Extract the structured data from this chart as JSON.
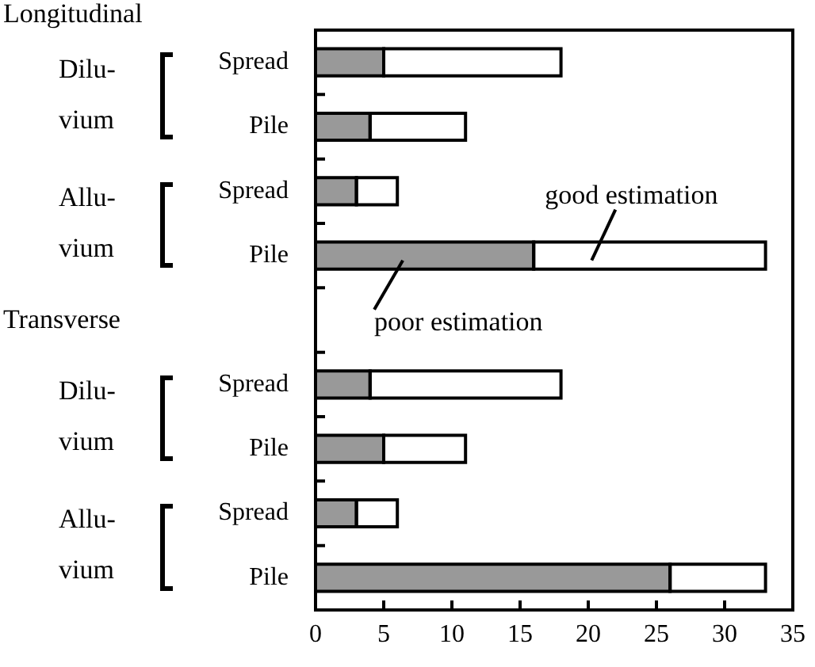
{
  "chart_data": {
    "type": "bar",
    "orientation": "horizontal",
    "stacked": true,
    "categories": [
      "Spread",
      "Pile",
      "Spread",
      "Pile",
      null,
      "Spread",
      "Pile",
      "Spread",
      "Pile"
    ],
    "series": [
      {
        "name": "poor estimation",
        "color": "#999999",
        "values": [
          5,
          4,
          3,
          16,
          null,
          4,
          5,
          3,
          26
        ]
      },
      {
        "name": "good estimation",
        "color": "#ffffff",
        "values": [
          13,
          7,
          3,
          17,
          null,
          14,
          6,
          3,
          7
        ]
      }
    ],
    "xlim": [
      0,
      35
    ],
    "xticks": [
      0,
      5,
      10,
      15,
      20,
      25,
      30,
      35
    ],
    "annotations": [
      "Longitudinal",
      "Dilu-\nvium",
      "Allu-\nvium",
      "Transverse",
      "Dilu-\nvium",
      "Allu-\nvium"
    ],
    "legend": "center"
  }
}
